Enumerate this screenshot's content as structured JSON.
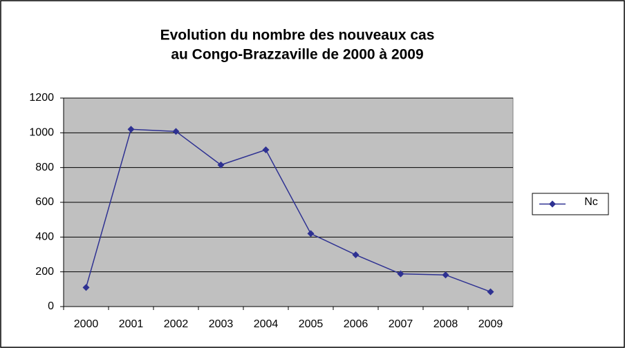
{
  "chart_data": {
    "type": "line",
    "title": [
      "Evolution du nombre des nouveaux cas",
      "au Congo-Brazzaville de 2000 à 2009"
    ],
    "categories": [
      "2000",
      "2001",
      "2002",
      "2003",
      "2004",
      "2005",
      "2006",
      "2007",
      "2008",
      "2009"
    ],
    "series": [
      {
        "name": "Nc",
        "color": "#2e3192",
        "values": [
          110,
          1020,
          1008,
          815,
          902,
          420,
          298,
          188,
          182,
          85
        ]
      }
    ],
    "ylim": [
      0,
      1200
    ],
    "yticks": [
      0,
      200,
      400,
      600,
      800,
      1000,
      1200
    ],
    "grid": true,
    "legend": "right"
  }
}
